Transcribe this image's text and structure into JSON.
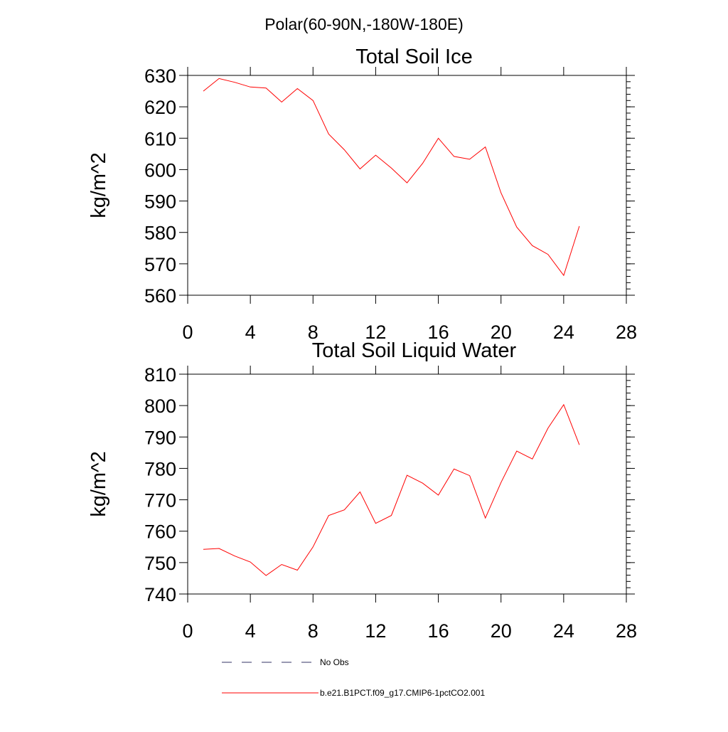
{
  "figure": {
    "suptitle": "Polar(60-90N,-180W-180E)"
  },
  "legend": {
    "entries": [
      {
        "label": "No Obs",
        "style": "dashed",
        "color": "#333366"
      },
      {
        "label": "b.e21.B1PCT.f09_g17.CMIP6-1pctCO2.001",
        "style": "solid",
        "color": "#ff0000"
      }
    ]
  },
  "chart_data": [
    {
      "type": "line",
      "title": "Total Soil Ice",
      "ylabel": "kg/m^2",
      "xlabel": "",
      "xlim": [
        0,
        28
      ],
      "ylim": [
        560,
        630
      ],
      "xticks": [
        0,
        4,
        8,
        12,
        16,
        20,
        24,
        28
      ],
      "yticks": [
        560,
        570,
        580,
        590,
        600,
        610,
        620,
        630
      ],
      "grid": false,
      "series": [
        {
          "name": "b.e21.B1PCT.f09_g17.CMIP6-1pctCO2.001",
          "color": "#ff0000",
          "x": [
            1,
            2,
            3,
            4,
            5,
            6,
            7,
            8,
            9,
            10,
            11,
            12,
            13,
            14,
            15,
            16,
            17,
            18,
            19,
            20,
            21,
            22,
            23,
            24,
            25
          ],
          "y": [
            625.0,
            629.0,
            627.8,
            626.3,
            626.0,
            621.5,
            625.8,
            622.0,
            611.3,
            606.3,
            600.2,
            604.6,
            600.5,
            595.8,
            602.0,
            610.0,
            604.2,
            603.3,
            607.2,
            592.6,
            581.7,
            575.8,
            573.0,
            566.3,
            582.0
          ]
        }
      ]
    },
    {
      "type": "line",
      "title": "Total Soil Liquid Water",
      "ylabel": "kg/m^2",
      "xlabel": "",
      "xlim": [
        0,
        28
      ],
      "ylim": [
        740,
        810
      ],
      "xticks": [
        0,
        4,
        8,
        12,
        16,
        20,
        24,
        28
      ],
      "yticks": [
        740,
        750,
        760,
        770,
        780,
        790,
        800,
        810
      ],
      "grid": false,
      "series": [
        {
          "name": "b.e21.B1PCT.f09_g17.CMIP6-1pctCO2.001",
          "color": "#ff0000",
          "x": [
            1,
            2,
            3,
            4,
            5,
            6,
            7,
            8,
            9,
            10,
            11,
            12,
            13,
            14,
            15,
            16,
            17,
            18,
            19,
            20,
            21,
            22,
            23,
            24,
            25
          ],
          "y": [
            754.2,
            754.5,
            752.1,
            750.2,
            745.9,
            749.4,
            747.6,
            755.0,
            765.0,
            766.8,
            772.5,
            762.5,
            765.0,
            777.8,
            775.3,
            771.5,
            779.8,
            777.7,
            764.2,
            775.5,
            785.5,
            783.0,
            792.8,
            800.3,
            787.5
          ]
        }
      ]
    }
  ]
}
